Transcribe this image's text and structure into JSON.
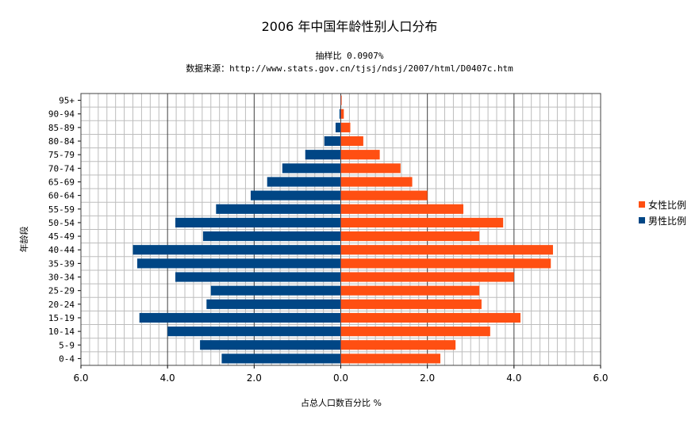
{
  "chart_data": {
    "type": "bar",
    "orientation": "horizontal",
    "layout": "population-pyramid",
    "title": "2006 年中国年龄性别人口分布",
    "subtitle_1": "抽样比 0.0907%",
    "subtitle_2": "数据来源：http://www.stats.gov.cn/tjsj/ndsj/2007/html/D0407c.htm",
    "xlabel": "占总人口数百分比 %",
    "ylabel": "年龄段",
    "xlim": [
      -6,
      6
    ],
    "xticks": [
      "6.0",
      "4.0",
      "2.0",
      "0.0",
      "2.0",
      "4.0",
      "6.0"
    ],
    "categories": [
      "0-4",
      "5-9",
      "10-14",
      "15-19",
      "20-24",
      "25-29",
      "30-34",
      "35-39",
      "40-44",
      "45-49",
      "50-54",
      "55-59",
      "60-64",
      "65-69",
      "70-74",
      "75-79",
      "80-84",
      "85-89",
      "90-94",
      "95+"
    ],
    "series": [
      {
        "name": "女性比例",
        "color": "#FF4F12",
        "side": "right",
        "values": [
          2.3,
          2.65,
          3.45,
          4.15,
          3.25,
          3.2,
          4.0,
          4.85,
          4.9,
          3.2,
          3.75,
          2.83,
          2.0,
          1.65,
          1.38,
          0.9,
          0.52,
          0.22,
          0.07,
          0.02
        ]
      },
      {
        "name": "男性比例",
        "color": "#004685",
        "side": "left",
        "values": [
          2.75,
          3.25,
          4.0,
          4.65,
          3.1,
          3.0,
          3.82,
          4.7,
          4.8,
          3.18,
          3.82,
          2.88,
          2.08,
          1.7,
          1.35,
          0.82,
          0.38,
          0.12,
          0.03,
          0.01
        ]
      }
    ],
    "grid": true,
    "legend_position": "right"
  }
}
